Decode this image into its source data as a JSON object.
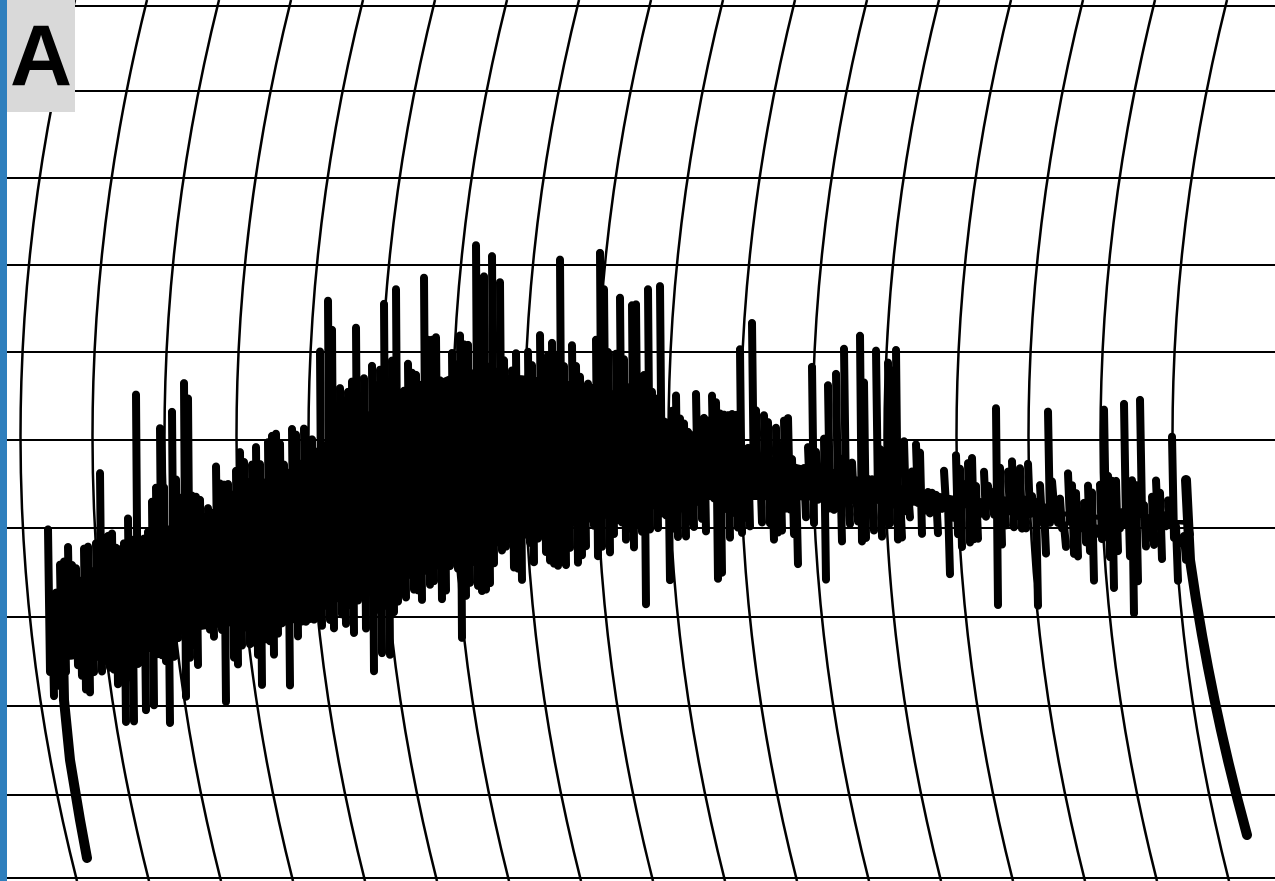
{
  "panel_label": "A",
  "colors": {
    "background": "#ffffff",
    "left_border": "#2f7fbd",
    "label_box": "#d9d9d9",
    "grid": "#000000",
    "trace": "#000000"
  },
  "recording": {
    "type": "strip-chart-trace",
    "paper": "curvilinear-grid",
    "horizontal_gridlines": 10,
    "curved_vertical_gridlines": 20,
    "trace_shape": "rapid oscillation rising to a peak near the first third, then slowly decaying with a terminal drop"
  }
}
